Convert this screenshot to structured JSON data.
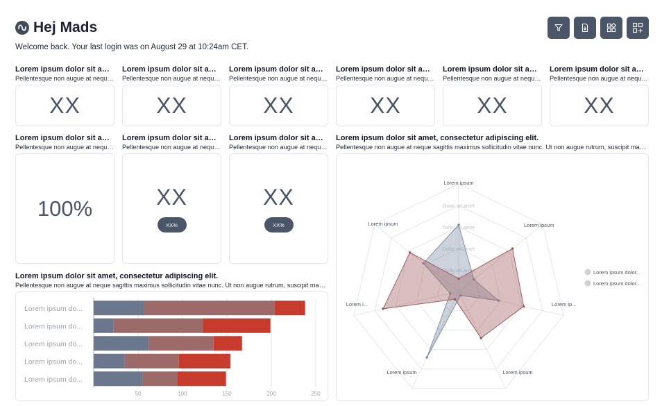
{
  "header": {
    "title": "Hej Mads",
    "welcome": "Welcome back. Your last login was on August 29 at 10:24am CET."
  },
  "toolbar": {
    "buttons": [
      {
        "icon": "filter-icon"
      },
      {
        "icon": "download-file-icon"
      },
      {
        "icon": "grid-layout-icon"
      },
      {
        "icon": "add-widget-icon"
      }
    ]
  },
  "kpi_row": [
    {
      "title": "Lorem ipsum dolor sit amet, consectetur",
      "subtitle": "Pellentesque non augue at neque sagittis",
      "value": "XX"
    },
    {
      "title": "Lorem ipsum dolor sit amet, consectetur",
      "subtitle": "Pellentesque non augue at neque sagittis",
      "value": "XX"
    },
    {
      "title": "Lorem ipsum dolor sit amet, consectetur",
      "subtitle": "Pellentesque non augue at neque sagittis",
      "value": "XX"
    },
    {
      "title": "Lorem ipsum dolor sit amet, consectetur",
      "subtitle": "Pellentesque non augue at neque sagittis",
      "value": "XX"
    },
    {
      "title": "Lorem ipsum dolor sit amet, consectetur",
      "subtitle": "Pellentesque non augue at neque sagittis",
      "value": "XX"
    },
    {
      "title": "Lorem ipsum dolor sit amet, consectetur",
      "subtitle": "Pellentesque non augue at neque sagittis",
      "value": "XX"
    }
  ],
  "row2": [
    {
      "title": "Lorem ipsum dolor sit amet, consectetur",
      "subtitle": "Pellentesque non augue at neque sagittis",
      "value": "100%"
    },
    {
      "title": "Lorem ipsum dolor sit amet, consectetur",
      "subtitle": "Pellentesque non augue at neque sagittis",
      "value": "XX",
      "badge": "XX%"
    },
    {
      "title": "Lorem ipsum dolor sit amet, consectetur",
      "subtitle": "Pellentesque non augue at neque sagittis",
      "value": "XX",
      "badge": "XX%"
    }
  ],
  "bar_widget": {
    "title": "Lorem ipsum dolor sit amet, consectetur adipiscing elit.",
    "subtitle": "Pellentesque non augue at neque sagittis maximus sollicitudin vitae nunc. Ut non augue rutrum, suscipit mauris"
  },
  "radar_widget": {
    "title": "Lorem ipsum dolor sit amet, consectetur adipiscing elit.",
    "subtitle": "Pellentesque non augue at neque sagittis maximus sollicitudin vitae nunc. Ut non augue rutrum, suscipit mauris"
  },
  "colors": {
    "accent": "#4b5568",
    "series_slate": "#6b778c",
    "series_mauve": "#9d6a6a",
    "series_red": "#c63b2b",
    "radar_slate": "#8090a8",
    "radar_mauve": "#a05f5f"
  },
  "chart_data": [
    {
      "type": "bar",
      "orientation": "horizontal",
      "stacked": true,
      "categories": [
        "Lorem ipsum dolor",
        "Lorem ipsum dolor",
        "Lorem ipsum dolor",
        "Lorem ipsum dolor",
        "Lorem ipsum dolor"
      ],
      "category_display": [
        "Lorem ipsum do...",
        "Lorem ipsum do...",
        "Lorem ipsum do...",
        "Lorem ipsum do...",
        "Lorem ipsum do..."
      ],
      "series": [
        {
          "values": [
            57,
            22,
            62,
            35,
            55
          ],
          "color": "#6b778c"
        },
        {
          "values": [
            147,
            101,
            73,
            61,
            39
          ],
          "color": "#9d6a6a"
        },
        {
          "values": [
            34,
            76,
            32,
            58,
            55
          ],
          "color": "#c63b2b"
        }
      ],
      "xlim": [
        0,
        250
      ],
      "xticks": [
        50,
        100,
        150,
        200,
        250
      ],
      "grid": true
    },
    {
      "type": "radar",
      "axes": [
        "Lorem ipsum",
        "Lorem ipsum",
        "Lorem ip...",
        "Lorem ipsum",
        "Lorem ipsum",
        "Lorem i...",
        "Lorem ipsum"
      ],
      "ring_labels": [
        "Dolor sit amet",
        "Dolor sit amet",
        "Dolor sit amet",
        "Dolor sit amet"
      ],
      "max": 5,
      "series": [
        {
          "name": "Lorem ipsum dolor...",
          "values": [
            3.1,
            0.9,
            1.9,
            0.2,
            3.4,
            0.4,
            2.1
          ],
          "color": "#8090a8"
        },
        {
          "name": "Lorem ipsum dolor...",
          "values": [
            0.6,
            3.2,
            3.1,
            2.4,
            0.4,
            3.6,
            2.9
          ],
          "color": "#a05f5f"
        }
      ],
      "legend": "right"
    }
  ]
}
